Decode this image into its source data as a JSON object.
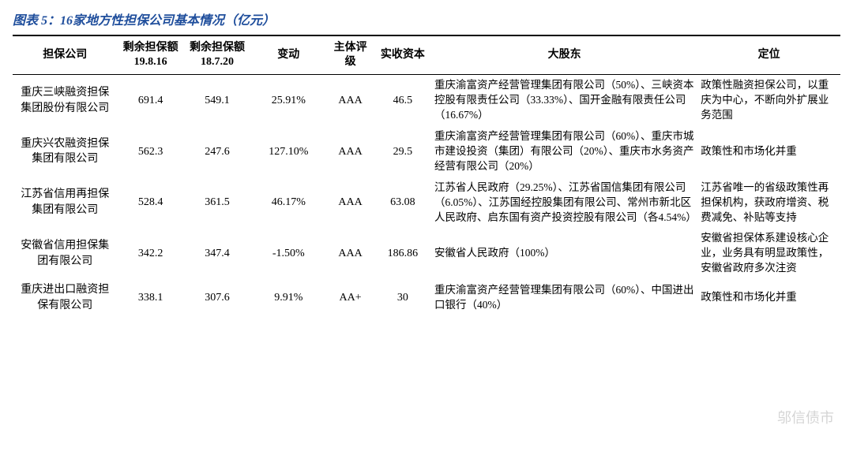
{
  "title": "图表 5：16家地方性担保公司基本情况（亿元）",
  "headers": {
    "h0": "担保公司",
    "h1": "剩余担保额\n19.8.16",
    "h2": "剩余担保额\n18.7.20",
    "h3": "变动",
    "h4": "主体评级",
    "h5": "实收资本",
    "h6": "大股东",
    "h7": "定位"
  },
  "rows": [
    {
      "name": "重庆三峡融资担保集团股份有限公司",
      "amt1": "691.4",
      "amt2": "549.1",
      "change": "25.91%",
      "rating": "AAA",
      "capital": "46.5",
      "shareholder": "重庆渝富资产经营管理集团有限公司（50%）、三峡资本控股有限责任公司（33.33%）、国开金融有限责任公司（16.67%）",
      "position": "政策性融资担保公司，以重庆为中心，不断向外扩展业务范围"
    },
    {
      "name": "重庆兴农融资担保集团有限公司",
      "amt1": "562.3",
      "amt2": "247.6",
      "change": "127.10%",
      "rating": "AAA",
      "capital": "29.5",
      "shareholder": "重庆渝富资产经营管理集团有限公司（60%）、重庆市城市建设投资（集团）有限公司（20%）、重庆市水务资产经营有限公司（20%）",
      "position": "政策性和市场化并重"
    },
    {
      "name": "江苏省信用再担保集团有限公司",
      "amt1": "528.4",
      "amt2": "361.5",
      "change": "46.17%",
      "rating": "AAA",
      "capital": "63.08",
      "shareholder": "江苏省人民政府（29.25%）、江苏省国信集团有限公司（6.05%）、江苏国经控股集团有限公司、常州市新北区人民政府、启东国有资产投资控股有限公司（各4.54%）",
      "position": "江苏省唯一的省级政策性再担保机构，获政府增资、税费减免、补贴等支持"
    },
    {
      "name": "安徽省信用担保集团有限公司",
      "amt1": "342.2",
      "amt2": "347.4",
      "change": "-1.50%",
      "rating": "AAA",
      "capital": "186.86",
      "shareholder": "安徽省人民政府（100%）",
      "position": "安徽省担保体系建设核心企业，业务具有明显政策性，安徽省政府多次注资"
    },
    {
      "name": "重庆进出口融资担保有限公司",
      "amt1": "338.1",
      "amt2": "307.6",
      "change": "9.91%",
      "rating": "AA+",
      "capital": "30",
      "shareholder": "重庆渝富资产经营管理集团有限公司（60%）、中国进出口银行（40%）",
      "position": "政策性和市场化并重"
    }
  ],
  "watermark": "邬信债市",
  "colors": {
    "title_color": "#1f4e9c",
    "border_color": "#000000",
    "text_color": "#000000",
    "background": "#ffffff"
  },
  "table_style": {
    "title_fontsize": 16,
    "header_fontsize": 14,
    "body_fontsize": 14,
    "top_border_width": 2,
    "header_border_width": 1.5
  }
}
